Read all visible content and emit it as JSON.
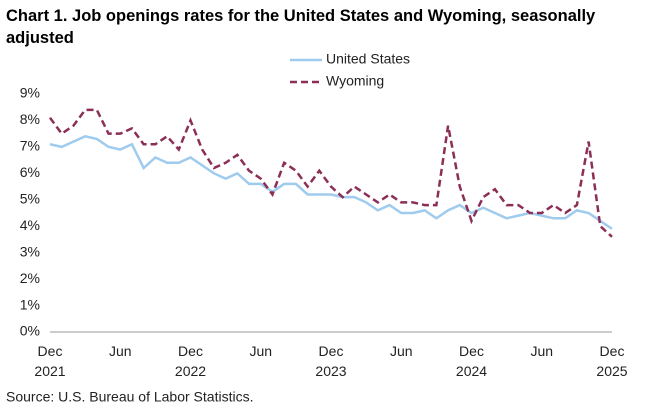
{
  "chart_data": {
    "type": "line",
    "title": "Chart 1. Job openings rates for the United States and Wyoming, seasonally adjusted",
    "source": "Source: U.S. Bureau of Labor Statistics.",
    "categories": [
      "Dec 2021",
      null,
      null,
      null,
      null,
      null,
      "Jun",
      null,
      null,
      null,
      null,
      null,
      "Dec 2022",
      null,
      null,
      null,
      null,
      null,
      "Jun",
      null,
      null,
      null,
      null,
      null,
      "Dec 2023",
      null,
      null,
      null,
      null,
      null,
      "Jun",
      null,
      null,
      null,
      null,
      null,
      "Dec 2024",
      null,
      null,
      null,
      null,
      null,
      "Jun",
      null,
      null,
      null,
      null,
      null,
      "Dec 2025"
    ],
    "series": [
      {
        "name": "United States",
        "color": "#9fcbee",
        "dash": false,
        "values": [
          7.1,
          7.0,
          7.2,
          7.4,
          7.3,
          7.0,
          6.9,
          7.1,
          6.2,
          6.6,
          6.4,
          6.4,
          6.6,
          6.3,
          6.0,
          5.8,
          6.0,
          5.6,
          5.6,
          5.3,
          5.6,
          5.6,
          5.2,
          5.2,
          5.2,
          5.1,
          5.1,
          4.9,
          4.6,
          4.8,
          4.5,
          4.5,
          4.6,
          4.3,
          4.6,
          4.8,
          4.5,
          4.7,
          4.5,
          4.3,
          4.4,
          4.5,
          4.4,
          4.3,
          4.3,
          4.6,
          4.5,
          4.2,
          3.9
        ]
      },
      {
        "name": "Wyoming",
        "color": "#8c2f56",
        "dash": true,
        "values": [
          8.1,
          7.5,
          7.8,
          8.4,
          8.4,
          7.5,
          7.5,
          7.7,
          7.1,
          7.1,
          7.4,
          6.9,
          8.0,
          6.9,
          6.2,
          6.4,
          6.7,
          6.1,
          5.8,
          5.2,
          6.4,
          6.1,
          5.5,
          6.1,
          5.5,
          5.1,
          5.5,
          5.2,
          4.9,
          5.2,
          4.9,
          4.9,
          4.8,
          4.8,
          7.8,
          5.5,
          4.2,
          5.1,
          5.4,
          4.8,
          4.8,
          4.5,
          4.5,
          4.8,
          4.5,
          4.8,
          7.2,
          4.0,
          3.6
        ]
      }
    ],
    "ylim": [
      0,
      9
    ],
    "yticks": [
      {
        "value": 0,
        "label": "0%"
      },
      {
        "value": 1,
        "label": "1%"
      },
      {
        "value": 2,
        "label": "2%"
      },
      {
        "value": 3,
        "label": "3%"
      },
      {
        "value": 4,
        "label": "4%"
      },
      {
        "value": 5,
        "label": "5%"
      },
      {
        "value": 6,
        "label": "6%"
      },
      {
        "value": 7,
        "label": "7%"
      },
      {
        "value": 8,
        "label": "8%"
      },
      {
        "value": 9,
        "label": "9%"
      }
    ],
    "grid": false
  }
}
